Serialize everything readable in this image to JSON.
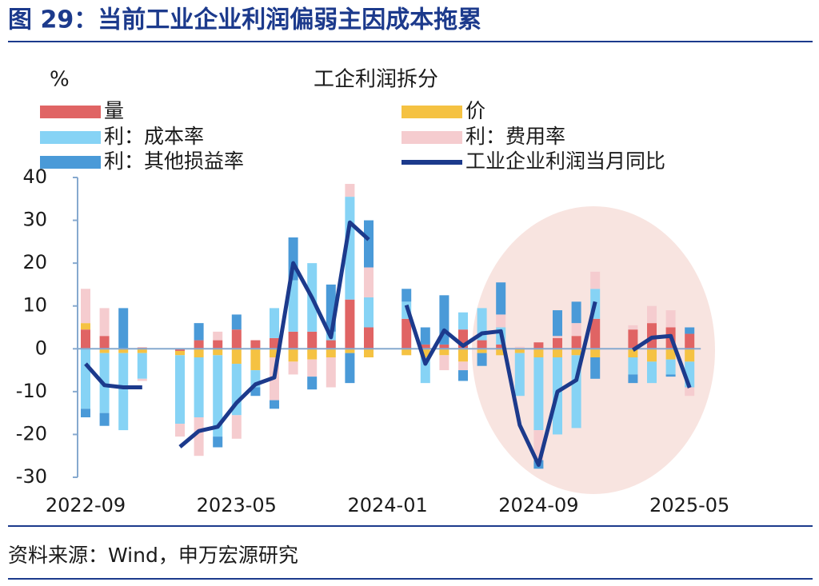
{
  "header": {
    "title": "图 29：当前工业企业利润偏弱主因成本拖累"
  },
  "chart_data": {
    "type": "bar_line",
    "title": "工企利润拆分",
    "y_label": "%",
    "categories": [
      "2022-09",
      null,
      null,
      null,
      null,
      null,
      null,
      null,
      "2023-05",
      null,
      null,
      null,
      null,
      null,
      null,
      null,
      "2024-01",
      null,
      null,
      null,
      null,
      null,
      null,
      null,
      "2024-09",
      null,
      null,
      null,
      null,
      null,
      null,
      null,
      "2025-05"
    ],
    "series": [
      {
        "name": "量",
        "color": "#e06464",
        "values": [
          4.5,
          3,
          0,
          0.3,
          null,
          -0.5,
          2,
          2,
          4.5,
          2,
          2.5,
          4,
          4,
          2,
          11.5,
          5,
          null,
          7,
          1,
          1,
          4.5,
          2,
          1,
          0,
          1.5,
          2.5,
          3,
          7,
          null,
          4.5,
          6,
          5,
          3.5
        ]
      },
      {
        "name": "价",
        "color": "#f5c242",
        "values": [
          1.5,
          -1,
          -1,
          -1,
          null,
          -1,
          -2,
          -1.5,
          -3.5,
          -5,
          -2,
          -3,
          -2.5,
          -2,
          -1,
          -2,
          null,
          -1.5,
          -2,
          -1.5,
          -3,
          -1,
          -1.5,
          -1,
          -2,
          -2,
          -1.5,
          -2,
          null,
          -2,
          -3,
          -2.5,
          -3
        ]
      },
      {
        "name": "利：成本率",
        "color": "#86d3f5",
        "values": [
          -14,
          -14,
          -18,
          -6,
          null,
          -16,
          -14,
          -19,
          -12,
          -4,
          7,
          12,
          16,
          2,
          24,
          7,
          null,
          4,
          -6,
          0,
          4,
          7.5,
          4,
          -10,
          -17,
          -18,
          -17,
          7,
          null,
          -4,
          -5,
          -3.5,
          -6
        ]
      },
      {
        "name": "利：费用率",
        "color": "#f5cccf",
        "values": [
          8,
          6.5,
          0,
          -0.5,
          null,
          -3,
          -9,
          2,
          -5.5,
          0,
          -10,
          -3,
          -4,
          -7,
          3,
          7,
          null,
          0,
          0,
          -3.5,
          -2,
          0,
          3,
          0.5,
          -7,
          0.5,
          3,
          4,
          null,
          1,
          4,
          4,
          -2
        ]
      },
      {
        "name": "利：其他损益率",
        "color": "#4a9ad8",
        "values": [
          -2,
          -3,
          9.5,
          0,
          null,
          0,
          4,
          -2.5,
          3.5,
          -2,
          -2,
          10,
          -3,
          11,
          -7,
          11,
          null,
          3,
          4,
          11.5,
          -2.5,
          -3,
          7.5,
          0,
          -2,
          6,
          5,
          -5,
          null,
          -2,
          0,
          -0.5,
          1.5
        ]
      },
      {
        "name": "工业企业利润当月同比",
        "color": "#1c3a8c",
        "line": true,
        "values": [
          -3.5,
          -8.5,
          -9,
          -9,
          null,
          -22.9,
          -19.2,
          -18.2,
          -12.6,
          -8.3,
          -6.7,
          20,
          11.9,
          2.7,
          29.5,
          25.5,
          null,
          10.2,
          -3.5,
          4.3,
          0.7,
          3.6,
          4.1,
          -17.8,
          -27.1,
          -10,
          -7.3,
          11,
          null,
          -0.3,
          2.6,
          3.0,
          -9.1
        ]
      }
    ],
    "ylim": [
      -30,
      40
    ],
    "yticks": [
      -30,
      -20,
      -10,
      0,
      10,
      20,
      30,
      40
    ]
  },
  "footer": {
    "source": "资料来源：Wind，申万宏源研究"
  }
}
